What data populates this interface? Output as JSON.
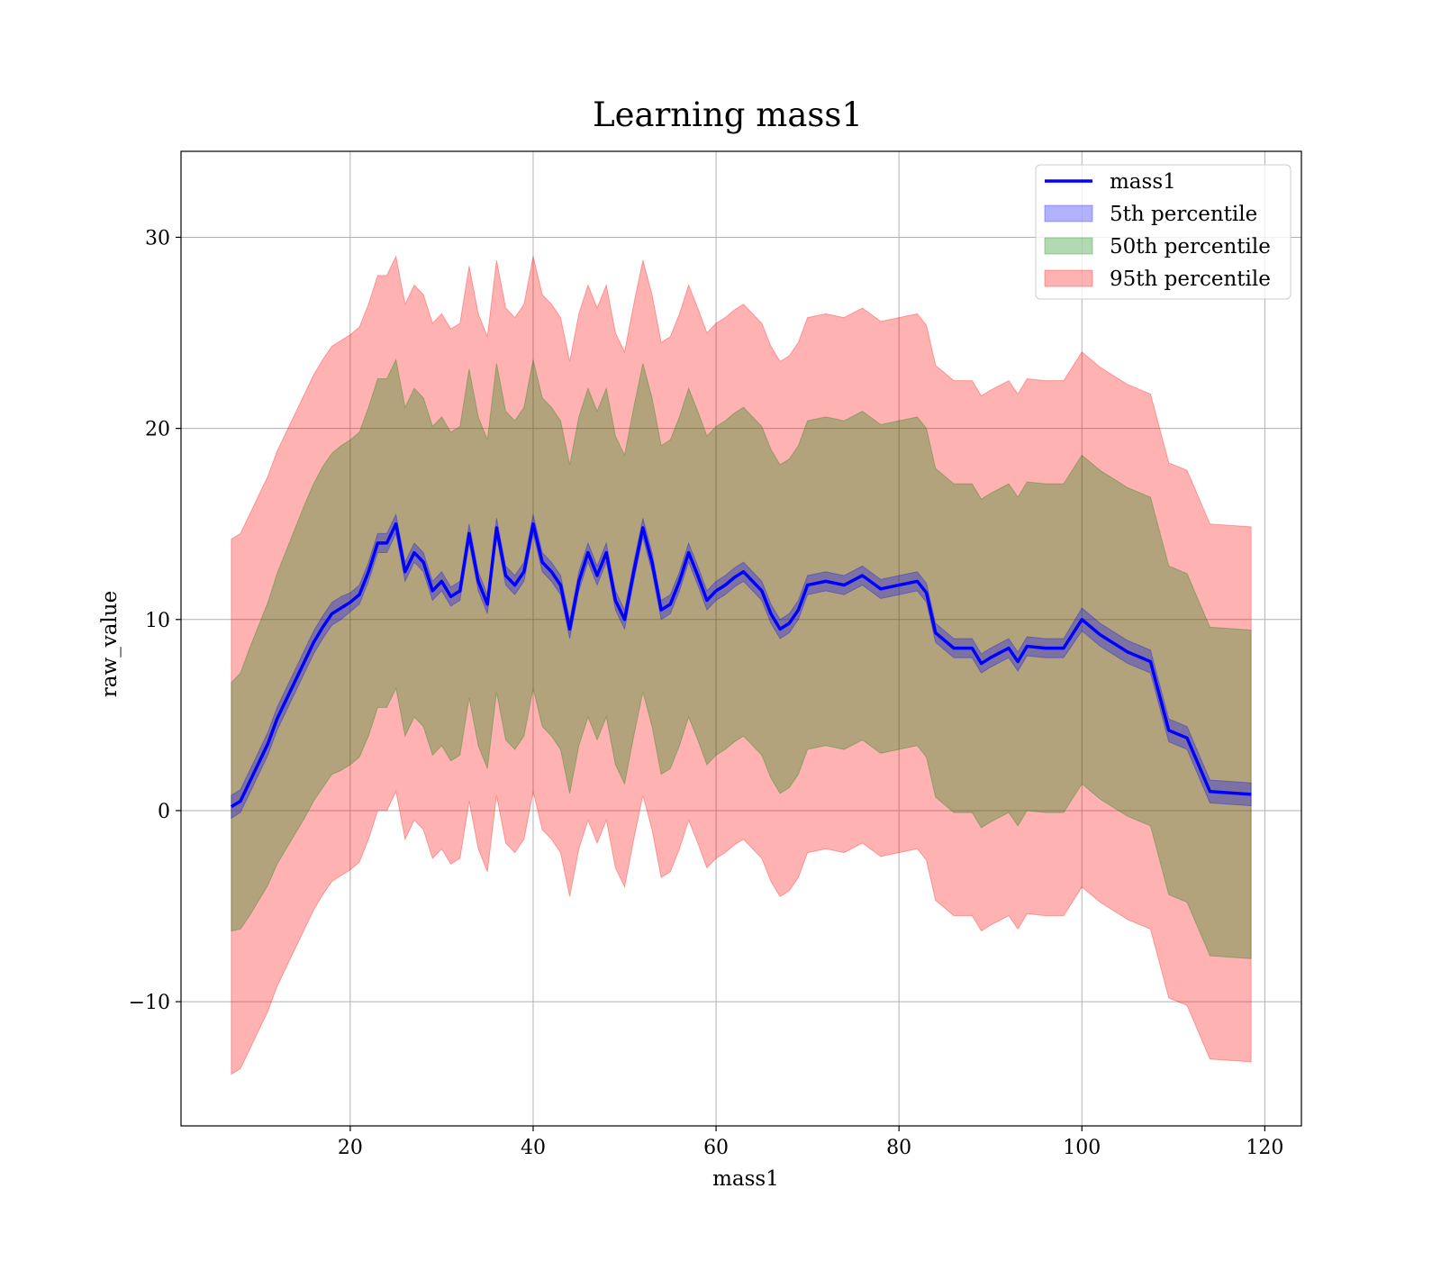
{
  "chart_data": {
    "type": "line",
    "title": "Learning mass1",
    "xlabel": "mass1",
    "ylabel": "raw_value",
    "xlim": [
      1.5,
      124
    ],
    "ylim": [
      -16.5,
      34.5
    ],
    "xticks": [
      20,
      40,
      60,
      80,
      100,
      120
    ],
    "yticks": [
      -10,
      0,
      10,
      20,
      30
    ],
    "xtick_labels": [
      "20",
      "40",
      "60",
      "80",
      "100",
      "120"
    ],
    "ytick_labels": [
      "−10",
      "0",
      "10",
      "20",
      "30"
    ],
    "grid": true,
    "legend_position": "top-right",
    "series": [
      {
        "name": "mass1",
        "kind": "line",
        "color": "#0000ff",
        "x": [
          7,
          8,
          9,
          10,
          11,
          12,
          13,
          14,
          15,
          16,
          17,
          18,
          19,
          20,
          21,
          22,
          23,
          24,
          25,
          26,
          27,
          28,
          29,
          30,
          31,
          32,
          33,
          34,
          35,
          36,
          37,
          38,
          39,
          40,
          41,
          42,
          43,
          44,
          45,
          46,
          47,
          48,
          49,
          50,
          51,
          52,
          53,
          54,
          55,
          56,
          57,
          58,
          59,
          60,
          61,
          62,
          63,
          64,
          65,
          66,
          67,
          68,
          69,
          70,
          72,
          74,
          76,
          78,
          80,
          82,
          83,
          84,
          86,
          88,
          89,
          90,
          92,
          93,
          94,
          96,
          98,
          100,
          102,
          105,
          107.5,
          109.5,
          111.5,
          114,
          118.5
        ],
        "y": [
          0.2,
          0.5,
          1.5,
          2.5,
          3.5,
          4.8,
          5.8,
          6.8,
          7.8,
          8.8,
          9.6,
          10.3,
          10.6,
          10.9,
          11.3,
          12.5,
          14.0,
          14.0,
          15.0,
          12.5,
          13.5,
          13.0,
          11.5,
          12.0,
          11.2,
          11.5,
          14.5,
          12.0,
          10.8,
          14.8,
          12.3,
          11.8,
          12.5,
          15.0,
          13.0,
          12.5,
          11.8,
          9.5,
          12.0,
          13.5,
          12.3,
          13.5,
          11.0,
          10.0,
          12.5,
          14.8,
          13.0,
          10.5,
          10.8,
          12.0,
          13.5,
          12.3,
          11.0,
          11.5,
          11.8,
          12.2,
          12.5,
          12.0,
          11.5,
          10.3,
          9.5,
          9.8,
          10.5,
          11.8,
          12.0,
          11.8,
          12.3,
          11.6,
          11.8,
          12.0,
          11.4,
          9.3,
          8.5,
          8.5,
          7.7,
          8.0,
          8.5,
          7.8,
          8.6,
          8.5,
          8.5,
          10.0,
          9.2,
          8.3,
          7.8,
          4.2,
          3.8,
          1.0,
          0.85
        ]
      },
      {
        "name": "5th percentile",
        "kind": "band",
        "color": "#0000ff",
        "halfwidth": [
          0.6,
          0.6,
          0.6,
          0.6,
          0.6,
          0.6,
          0.6,
          0.6,
          0.6,
          0.6,
          0.6,
          0.6,
          0.6,
          0.5,
          0.5,
          0.5,
          0.5,
          0.5,
          0.5,
          0.5,
          0.5,
          0.5,
          0.5,
          0.5,
          0.5,
          0.5,
          0.5,
          0.5,
          0.5,
          0.5,
          0.5,
          0.5,
          0.5,
          0.5,
          0.5,
          0.5,
          0.5,
          0.5,
          0.5,
          0.5,
          0.5,
          0.5,
          0.5,
          0.5,
          0.5,
          0.5,
          0.5,
          0.5,
          0.5,
          0.5,
          0.5,
          0.5,
          0.5,
          0.5,
          0.5,
          0.5,
          0.5,
          0.5,
          0.5,
          0.5,
          0.5,
          0.5,
          0.5,
          0.5,
          0.5,
          0.5,
          0.5,
          0.5,
          0.5,
          0.5,
          0.5,
          0.5,
          0.5,
          0.5,
          0.5,
          0.5,
          0.5,
          0.5,
          0.5,
          0.5,
          0.5,
          0.6,
          0.6,
          0.6,
          0.6,
          0.6,
          0.6,
          0.6,
          0.6
        ]
      },
      {
        "name": "50th percentile",
        "kind": "band",
        "color": "#008000",
        "halfwidth": [
          6.5,
          6.7,
          7.0,
          7.2,
          7.4,
          7.6,
          7.8,
          8.0,
          8.2,
          8.3,
          8.4,
          8.4,
          8.5,
          8.5,
          8.5,
          8.6,
          8.6,
          8.6,
          8.6,
          8.6,
          8.6,
          8.6,
          8.6,
          8.6,
          8.6,
          8.6,
          8.6,
          8.6,
          8.6,
          8.6,
          8.6,
          8.6,
          8.6,
          8.6,
          8.6,
          8.6,
          8.6,
          8.6,
          8.6,
          8.6,
          8.6,
          8.6,
          8.6,
          8.6,
          8.6,
          8.6,
          8.6,
          8.6,
          8.6,
          8.6,
          8.6,
          8.6,
          8.6,
          8.6,
          8.6,
          8.6,
          8.6,
          8.6,
          8.6,
          8.6,
          8.6,
          8.6,
          8.6,
          8.6,
          8.6,
          8.6,
          8.6,
          8.6,
          8.6,
          8.6,
          8.6,
          8.6,
          8.6,
          8.6,
          8.6,
          8.6,
          8.6,
          8.6,
          8.6,
          8.6,
          8.6,
          8.6,
          8.6,
          8.6,
          8.6,
          8.6,
          8.6,
          8.6,
          8.6
        ]
      },
      {
        "name": "95th percentile",
        "kind": "band",
        "color": "#ff0000",
        "halfwidth": [
          14.0,
          14.0,
          14.0,
          14.0,
          14.0,
          14.0,
          14.0,
          14.0,
          14.0,
          14.0,
          14.0,
          14.0,
          14.0,
          14.0,
          14.0,
          14.0,
          14.0,
          14.0,
          14.0,
          14.0,
          14.0,
          14.0,
          14.0,
          14.0,
          14.0,
          14.0,
          14.0,
          14.0,
          14.0,
          14.0,
          14.0,
          14.0,
          14.0,
          14.0,
          14.0,
          14.0,
          14.0,
          14.0,
          14.0,
          14.0,
          14.0,
          14.0,
          14.0,
          14.0,
          14.0,
          14.0,
          14.0,
          14.0,
          14.0,
          14.0,
          14.0,
          14.0,
          14.0,
          14.0,
          14.0,
          14.0,
          14.0,
          14.0,
          14.0,
          14.0,
          14.0,
          14.0,
          14.0,
          14.0,
          14.0,
          14.0,
          14.0,
          14.0,
          14.0,
          14.0,
          14.0,
          14.0,
          14.0,
          14.0,
          14.0,
          14.0,
          14.0,
          14.0,
          14.0,
          14.0,
          14.0,
          14.0,
          14.0,
          14.0,
          14.0,
          14.0,
          14.0,
          14.0,
          14.0
        ]
      }
    ]
  },
  "colors": {
    "line": "#0000ff",
    "band_5": "#0000ff",
    "band_50": "#008000",
    "band_95": "#ff0000",
    "grid": "#b0b0b0"
  }
}
